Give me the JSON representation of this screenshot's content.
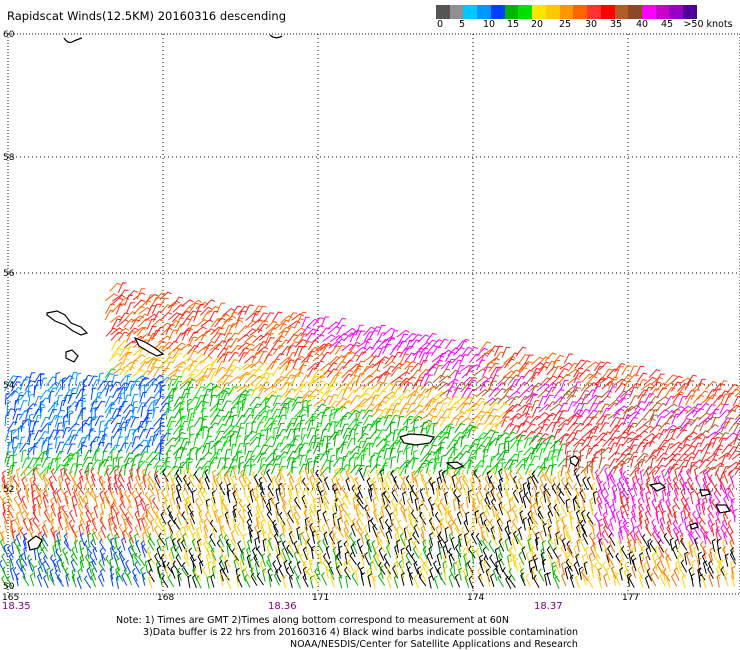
{
  "title": "Rapidscat Winds(12.5KM) 20160316 descending",
  "colorbar": {
    "colors": [
      "#555555",
      "#909090",
      "#00c8ff",
      "#0096ff",
      "#0040ff",
      "#00b400",
      "#00e000",
      "#ffe600",
      "#ffc800",
      "#ff9600",
      "#ff6400",
      "#ff3232",
      "#ff0000",
      "#b45a28",
      "#8c4628",
      "#ff00ff",
      "#c800c8",
      "#9600c8",
      "#500096"
    ],
    "labels": [
      "0",
      "5",
      "10",
      "15",
      "20",
      "25",
      "30",
      "35",
      "40",
      "45",
      ">50 knots"
    ]
  },
  "map": {
    "lat_labels": [
      "60",
      "58",
      "56",
      "54",
      "52",
      "50"
    ],
    "lon_labels": [
      "165",
      "168",
      "171",
      "174",
      "177"
    ],
    "time_labels": [
      "18.35",
      "18.36",
      "18.37"
    ]
  },
  "footer": {
    "line1": "Note: 1) Times are GMT 2)Times along bottom correspond to measurement at 60N",
    "line2": "3)Data buffer is 22 hrs from 20160316 4) Black wind barbs indicate possible contamination",
    "line3": "NOAA/NESDIS/Center for Satellite Applications and Research"
  }
}
